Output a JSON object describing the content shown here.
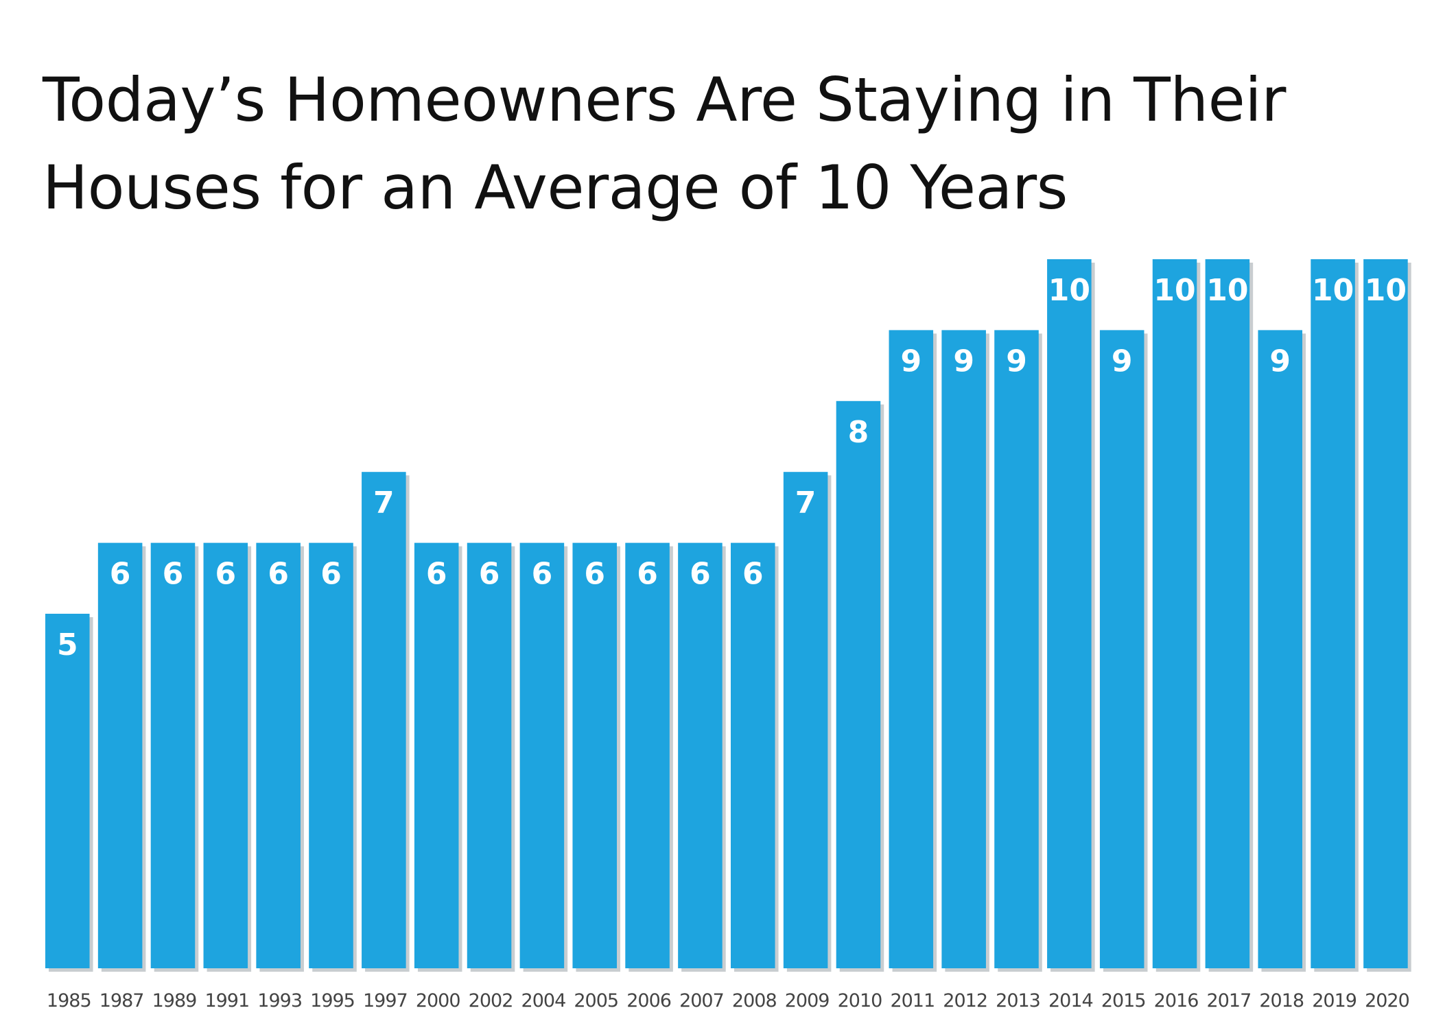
{
  "chart_data": {
    "type": "bar",
    "title": "Today’s Homeowners Are Staying in Their Houses for an Average of 10 Years",
    "xlabel": "",
    "ylabel": "",
    "ylim": [
      0,
      10
    ],
    "grid": false,
    "legend": "none",
    "categories": [
      "1985",
      "1987",
      "1989",
      "1991",
      "1993",
      "1995",
      "1997",
      "2000",
      "2002",
      "2004",
      "2005",
      "2006",
      "2007",
      "2008",
      "2009",
      "2010",
      "2011",
      "2012",
      "2013",
      "2014",
      "2015",
      "2016",
      "2017",
      "2018",
      "2019",
      "2020"
    ],
    "values": [
      5,
      6,
      6,
      6,
      6,
      6,
      7,
      6,
      6,
      6,
      6,
      6,
      6,
      6,
      7,
      8,
      9,
      9,
      9,
      10,
      9,
      10,
      10,
      9,
      10,
      10
    ],
    "data_labels": [
      "5",
      "6",
      "6",
      "6",
      "6",
      "6",
      "7",
      "6",
      "6",
      "6",
      "6",
      "6",
      "6",
      "6",
      "7",
      "8",
      "9",
      "9",
      "9",
      "10",
      "9",
      "10",
      "10",
      "9",
      "10",
      "10"
    ],
    "bar_color": "#1ea4df",
    "label_color": "#ffffff"
  }
}
